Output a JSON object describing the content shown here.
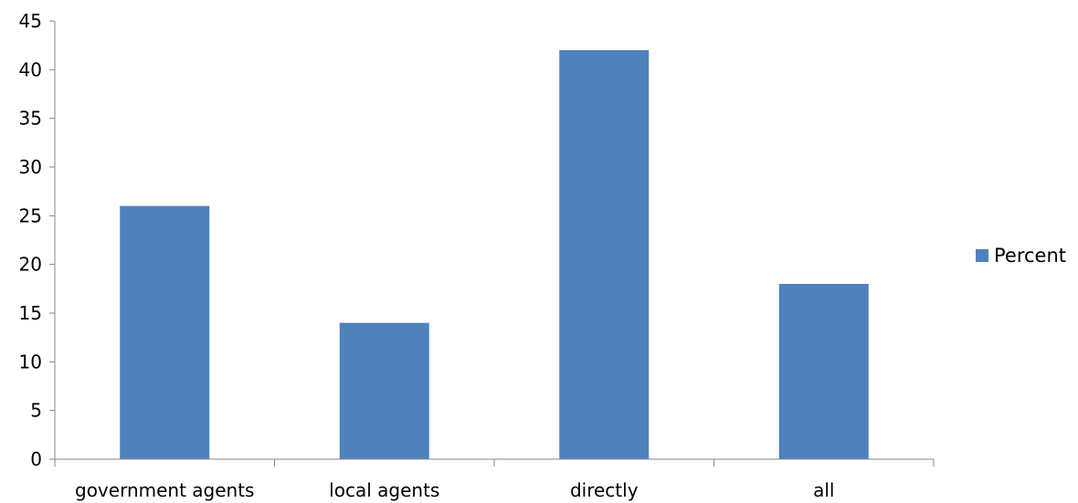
{
  "chart_data": {
    "type": "bar",
    "categories": [
      "government agents",
      "local agents",
      "directly",
      "all"
    ],
    "series": [
      {
        "name": "Percent",
        "values": [
          26,
          14,
          42,
          18
        ],
        "color": "#4F81BD"
      }
    ],
    "yticks": [
      0,
      5,
      10,
      15,
      20,
      25,
      30,
      35,
      40,
      45
    ],
    "ylim": [
      0,
      45
    ],
    "grid": false,
    "legend_position": "right",
    "axis_color": "#868686"
  }
}
